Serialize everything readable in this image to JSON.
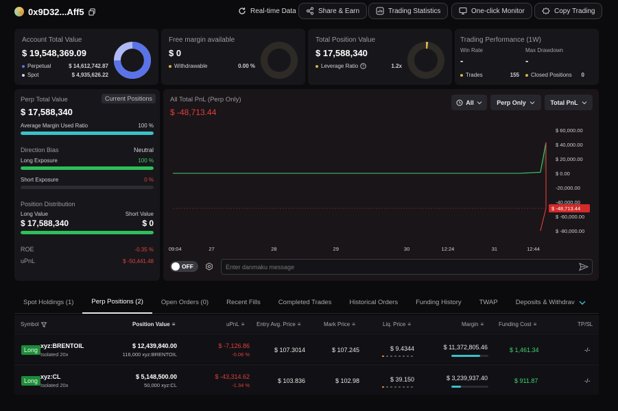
{
  "header": {
    "wallet_address": "0x9D32...Aff5",
    "buttons": [
      "Real-time Data",
      "Share & Earn",
      "Trading Statistics",
      "One-click Monitor",
      "Copy Trading"
    ]
  },
  "account": {
    "title": "Account Total Value",
    "value": "$ 19,548,369.09",
    "perpetual_label": "Perpetual",
    "perpetual_value": "$ 14,612,742.87",
    "spot_label": "Spot",
    "spot_value": "$ 4,935,626.22",
    "perp_share": 0.7475
  },
  "margin": {
    "title": "Free margin available",
    "value": "$ 0",
    "withdrawable_label": "Withdrawable",
    "withdrawable_value": "0.00 %"
  },
  "position_value": {
    "title": "Total Position Value",
    "value": "$ 17,588,340",
    "leverage_label": "Leverage Ratio",
    "leverage_value": "1.2x",
    "leverage_fill": 0.02
  },
  "performance": {
    "title": "Trading Performance (1W)",
    "win_rate_label": "Win Rate",
    "win_rate_value": "-",
    "max_drawdown_label": "Max Drawdown",
    "max_drawdown_value": "-",
    "trades_label": "Trades",
    "trades_value": "155",
    "closed_label": "Closed Positions",
    "closed_value": "0"
  },
  "perp_panel": {
    "title": "Perp Total Value",
    "current_positions_btn": "Current Positions",
    "value": "$ 17,588,340",
    "avg_margin_label": "Average Margin Used Ratio",
    "avg_margin_value": "100 %",
    "avg_margin_fill": 1.0,
    "direction_label": "Direction Bias",
    "direction_value": "Neutral",
    "long_exposure_label": "Long Exposure",
    "long_exposure_value": "100 %",
    "long_exposure_fill": 1.0,
    "short_exposure_label": "Short Exposure",
    "short_exposure_value": "0 %",
    "short_exposure_fill": 0.0,
    "distribution_label": "Position Distribution",
    "long_value_label": "Long Value",
    "short_value_label": "Short Value",
    "long_value": "$ 17,588,340",
    "short_value": "$ 0",
    "distribution_fill": 1.0,
    "roe_label": "ROE",
    "roe_value": "-0.35 %",
    "upnl_label": "uPnL",
    "upnl_value": "$ -50,441.48"
  },
  "pnl_chart": {
    "title": "All Total PnL (Perp Only)",
    "value": "$ -48,713.44",
    "filter_time": "All",
    "filter_scope": "Perp Only",
    "filter_metric": "Total PnL",
    "current_label": "$ -48,713.44",
    "danmaku_toggle": "OFF",
    "danmaku_placeholder": "Enter danmaku message"
  },
  "chart_data": {
    "type": "line",
    "title": "All Total PnL (Perp Only)",
    "x_ticks": [
      "09:04",
      "27",
      "28",
      "29",
      "30",
      "12:24",
      "31",
      "12:44"
    ],
    "y_ticks": [
      "$ 60,000.00",
      "$ 40,000.00",
      "$ 20,000.00",
      "$ 0.00",
      "-20,000.00",
      "-40,000.00",
      "$ -60,000.00",
      "$ -80,000.00"
    ],
    "ylim": [
      -80000,
      60000
    ],
    "series": [
      {
        "x": [
          0,
          0.45,
          0.93,
          0.985,
          1.0,
          1.0,
          1.0,
          0.985,
          1.0
        ],
        "y": [
          0,
          0,
          0,
          1500,
          43000,
          0,
          -48713,
          -80000,
          -48713
        ]
      }
    ],
    "current_value": -48713.44
  },
  "tabs": [
    "Spot Holdings (1)",
    "Perp Positions (2)",
    "Open Orders (0)",
    "Recent Fills",
    "Completed Trades",
    "Historical Orders",
    "Funding History",
    "TWAP",
    "Deposits & Withdrav"
  ],
  "table": {
    "columns": [
      "Symbol",
      "Position Value",
      "uPnL",
      "Entry Avg. Price",
      "Mark Price",
      "Liq. Price",
      "Margin",
      "Funding Cost",
      "TP/SL"
    ],
    "rows": [
      {
        "side": "Long",
        "symbol": "xyz:BRENTOIL",
        "mode": "Isolated 20x",
        "position_value": "$ 12,439,840.00",
        "position_size": "116,000 xyz:BRENTOIL",
        "upnl": "$ -7,126.86",
        "upnl_pct": "-0.06 %",
        "entry": "$ 107.3014",
        "mark": "$ 107.245",
        "liq": "$ 9.4344",
        "margin": "$ 11,372,805.46",
        "margin_fill": 0.78,
        "funding": "$ 1,461.34",
        "tpsl": "-/-"
      },
      {
        "side": "Long",
        "symbol": "xyz:CL",
        "mode": "Isolated 20x",
        "position_value": "$ 5,148,500.00",
        "position_size": "50,000 xyz:CL",
        "upnl": "$ -43,314.62",
        "upnl_pct": "-1.34 %",
        "entry": "$ 103.836",
        "mark": "$ 102.98",
        "liq": "$ 39.150",
        "margin": "$ 3,239,937.40",
        "margin_fill": 0.25,
        "funding": "$ 911.87",
        "tpsl": "-/-"
      }
    ]
  },
  "colors": {
    "accent_blue": "#5b73e8",
    "green": "#3fd26e",
    "red": "#e0403c",
    "teal": "#3bc1c9",
    "gold": "#d4b44a"
  }
}
